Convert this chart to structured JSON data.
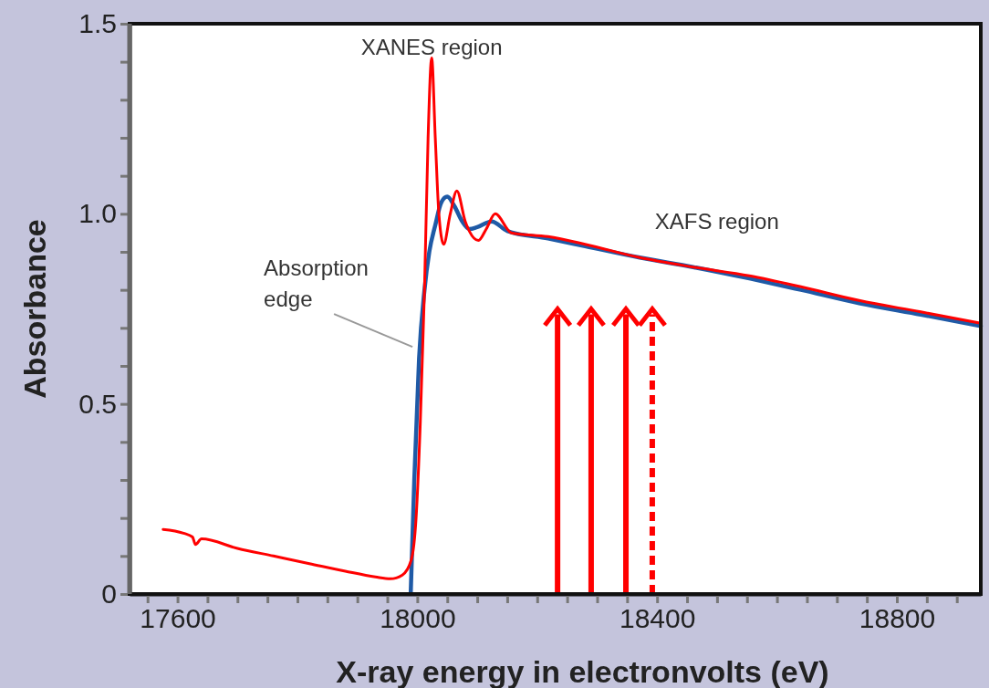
{
  "chart_data": {
    "type": "line",
    "xlabel": "X-ray energy in electronvolts (eV)",
    "ylabel": "Absorbance",
    "xlim": [
      17520,
      18940
    ],
    "ylim": [
      0,
      1.5
    ],
    "xticks": [
      {
        "value": 17550,
        "label": null
      },
      17600,
      {
        "value": 17650,
        "label": null
      },
      {
        "value": 17700,
        "label": null
      },
      {
        "value": 17750,
        "label": null
      },
      {
        "value": 17800,
        "label": null
      },
      {
        "value": 17850,
        "label": null
      },
      {
        "value": 17900,
        "label": null
      },
      {
        "value": 17950,
        "label": null
      },
      18000,
      {
        "value": 18050,
        "label": null
      },
      {
        "value": 18100,
        "label": null
      },
      {
        "value": 18150,
        "label": null
      },
      {
        "value": 18200,
        "label": null
      },
      {
        "value": 18250,
        "label": null
      },
      {
        "value": 18300,
        "label": null
      },
      {
        "value": 18350,
        "label": null
      },
      18400,
      {
        "value": 18450,
        "label": null
      },
      {
        "value": 18500,
        "label": null
      },
      {
        "value": 18550,
        "label": null
      },
      {
        "value": 18600,
        "label": null
      },
      {
        "value": 18650,
        "label": null
      },
      {
        "value": 18700,
        "label": null
      },
      {
        "value": 18750,
        "label": null
      },
      18800,
      {
        "value": 18850,
        "label": null
      },
      {
        "value": 18900,
        "label": null
      }
    ],
    "yticks": [
      0,
      {
        "value": 0.1,
        "label": null
      },
      {
        "value": 0.2,
        "label": null
      },
      {
        "value": 0.3,
        "label": null
      },
      {
        "value": 0.4,
        "label": null
      },
      {
        "value": 0.5,
        "label": "0.5"
      },
      {
        "value": 0.6,
        "label": null
      },
      {
        "value": 0.7,
        "label": null
      },
      {
        "value": 0.8,
        "label": null
      },
      {
        "value": 0.9,
        "label": null
      },
      {
        "value": 1,
        "label": "1.0"
      },
      {
        "value": 1.1,
        "label": null
      },
      {
        "value": 1.2,
        "label": null
      },
      {
        "value": 1.3,
        "label": null
      },
      {
        "value": 1.4,
        "label": null
      },
      1.5
    ],
    "grid": false,
    "series": [
      {
        "color": "#ff0000",
        "x": [
          17576,
          17610,
          17625,
          17630,
          17640,
          17700,
          17760,
          17820,
          17880,
          17930,
          17955,
          17975,
          17990,
          17998,
          18005,
          18012,
          18018,
          18024,
          18030,
          18036,
          18044,
          18055,
          18066,
          18080,
          18102,
          18115,
          18130,
          18157,
          18218,
          18280,
          18371,
          18460,
          18554,
          18640,
          18737,
          18840,
          18940
        ],
        "values": [
          0.17,
          0.16,
          0.15,
          0.13,
          0.145,
          0.12,
          0.1,
          0.08,
          0.06,
          0.045,
          0.04,
          0.05,
          0.09,
          0.2,
          0.45,
          0.8,
          1.2,
          1.41,
          1.2,
          1.0,
          0.92,
          1.0,
          1.06,
          0.98,
          0.93,
          0.96,
          1.0,
          0.95,
          0.94,
          0.92,
          0.885,
          0.86,
          0.837,
          0.808,
          0.772,
          0.742,
          0.712
        ]
      },
      {
        "color": "#1f5aa6",
        "x": [
          17989,
          17995,
          18003,
          18012,
          18020,
          18030,
          18040,
          18050,
          18062,
          18075,
          18087,
          18100,
          18124,
          18150,
          18218,
          18280,
          18371,
          18460,
          18554,
          18640,
          18737,
          18840,
          18940
        ],
        "values": [
          0,
          0.3,
          0.62,
          0.8,
          0.9,
          0.97,
          1.03,
          1.045,
          1.02,
          0.98,
          0.96,
          0.965,
          0.98,
          0.955,
          0.935,
          0.915,
          0.885,
          0.86,
          0.83,
          0.8,
          0.765,
          0.735,
          0.705
        ]
      }
    ],
    "ref_lines": [
      {
        "axis": "x",
        "value": 18234,
        "color": "#ff0000",
        "line_style": "solid"
      },
      {
        "axis": "x",
        "value": 18290,
        "color": "#ff0000",
        "line_style": "solid"
      },
      {
        "axis": "x",
        "value": 18348,
        "color": "#ff0000",
        "line_style": "solid"
      },
      {
        "axis": "x",
        "value": 18392,
        "color": "#ff0000",
        "line_style": "dashed"
      }
    ],
    "annotations": [
      {
        "text": "XANES region",
        "x": 18024,
        "y": 1.4
      },
      {
        "text": "Absorption\nedge",
        "x": 17995,
        "y": 0.65
      },
      "XAFS region"
    ]
  }
}
